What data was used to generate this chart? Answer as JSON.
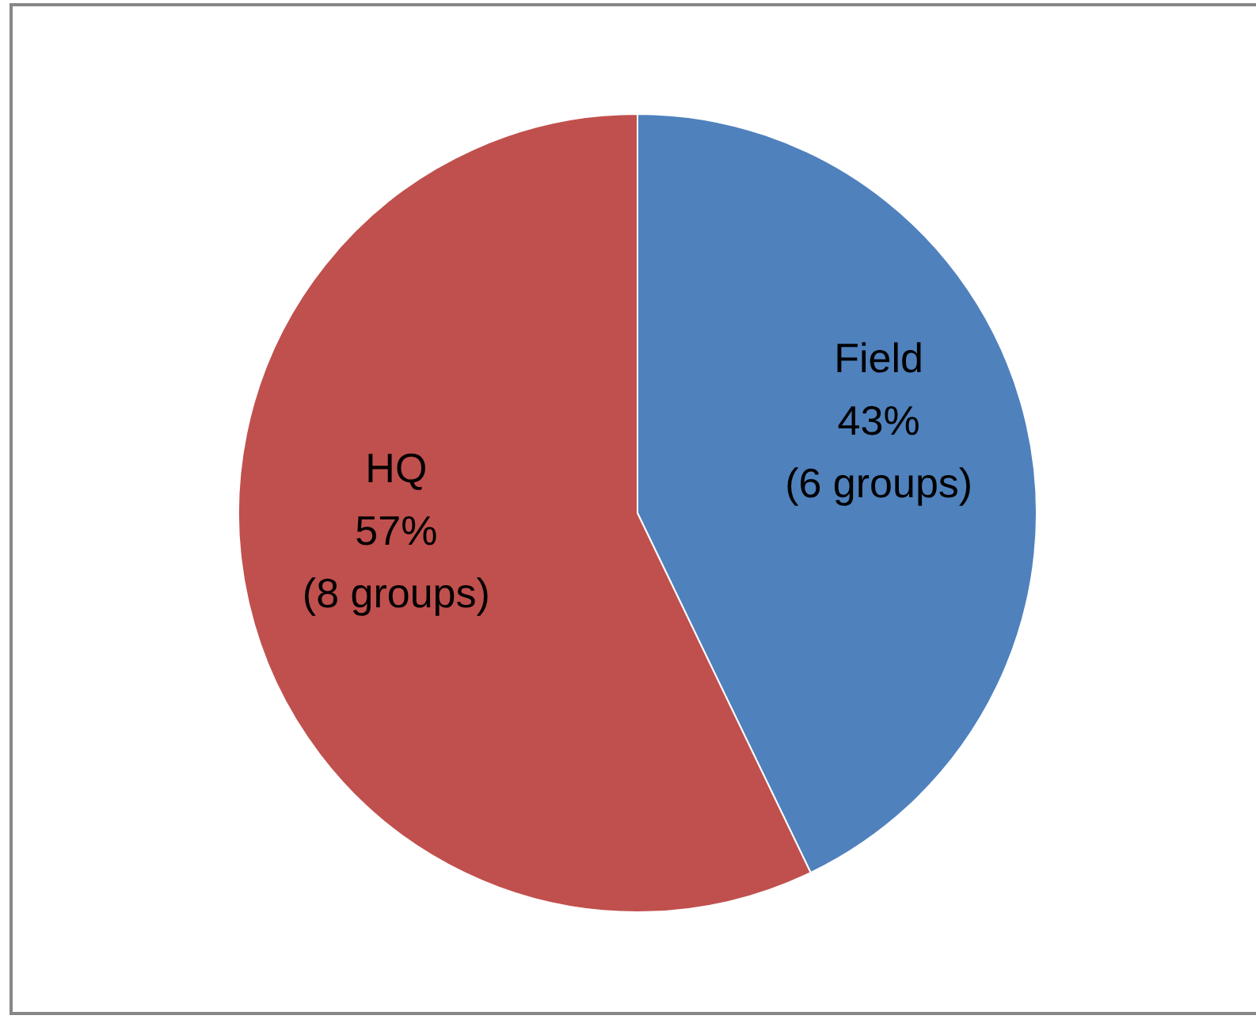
{
  "chart_data": {
    "type": "pie",
    "categories": [
      "Field",
      "HQ"
    ],
    "values": [
      6,
      8
    ],
    "colors": [
      "#4f81bd",
      "#c0504d"
    ],
    "value_labels": [
      "43%\n(6 groups)",
      "57%\n(8 groups)"
    ],
    "legend": false
  }
}
